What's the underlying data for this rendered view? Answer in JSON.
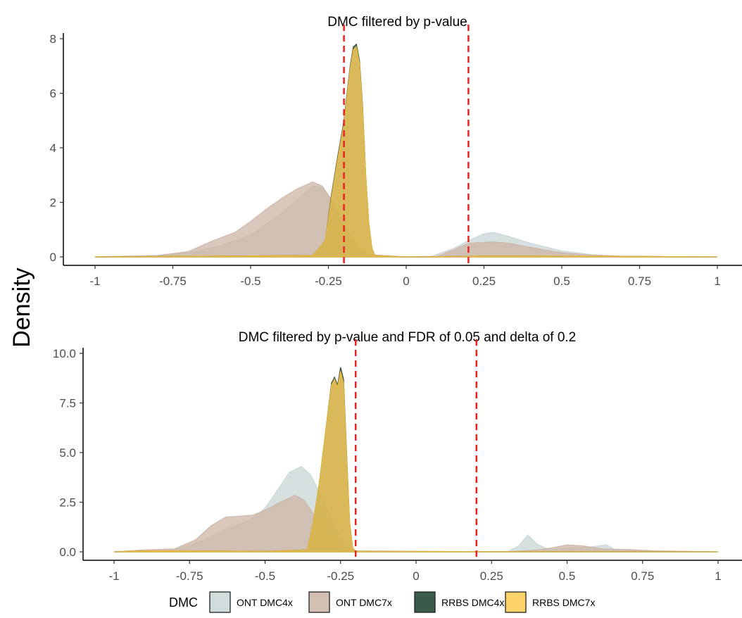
{
  "shared": {
    "ylabel": "Density",
    "legend_title": "DMC",
    "legend_position": "bottom",
    "threshold_lines": [
      -0.2,
      0.2
    ],
    "threshold_color": "#e8231f",
    "series_styles": [
      {
        "name": "ONT DMC4x",
        "fill": "#c9d6d6",
        "stroke": "#c9d6d6"
      },
      {
        "name": "ONT DMC7x",
        "fill": "#cdb5a6",
        "stroke": "#cdb5a6"
      },
      {
        "name": "RRBS DMC4x",
        "fill": "#3a5a4a",
        "stroke": "#2a4236"
      },
      {
        "name": "RRBS DMC7x",
        "fill": "#fdcb4f",
        "stroke": "#f2bd3b"
      }
    ]
  },
  "chart_data": [
    {
      "type": "area",
      "title": "DMC filtered by p-value",
      "xlabel": "",
      "ylabel": "Density",
      "xlim": [
        -1,
        1
      ],
      "ylim": [
        0,
        8
      ],
      "xticks": [
        -1,
        -0.75,
        -0.5,
        -0.25,
        0,
        0.25,
        0.5,
        0.75,
        1
      ],
      "xtick_labels": [
        "-1",
        "-0.75",
        "-0.5",
        "-0.25",
        "0",
        "0.25",
        "0.5",
        "0.75",
        "1"
      ],
      "yticks": [
        0,
        2,
        4,
        6,
        8
      ],
      "ytick_labels": [
        "0",
        "2",
        "4",
        "6",
        "8"
      ],
      "vlines": [
        -0.2,
        0.2
      ],
      "grid": false,
      "series": [
        {
          "name": "ONT DMC4x",
          "points": [
            [
              -1,
              0
            ],
            [
              -0.9,
              0.02
            ],
            [
              -0.8,
              0.05
            ],
            [
              -0.7,
              0.15
            ],
            [
              -0.6,
              0.4
            ],
            [
              -0.5,
              0.8
            ],
            [
              -0.45,
              1.2
            ],
            [
              -0.4,
              1.6
            ],
            [
              -0.35,
              2.1
            ],
            [
              -0.3,
              2.6
            ],
            [
              -0.27,
              2.55
            ],
            [
              -0.24,
              2.1
            ],
            [
              -0.21,
              1.4
            ],
            [
              -0.18,
              0.8
            ],
            [
              -0.15,
              0.35
            ],
            [
              -0.12,
              0.1
            ],
            [
              -0.09,
              0.02
            ],
            [
              0,
              0
            ],
            [
              0.08,
              0.02
            ],
            [
              0.15,
              0.3
            ],
            [
              0.2,
              0.6
            ],
            [
              0.25,
              0.85
            ],
            [
              0.28,
              0.9
            ],
            [
              0.33,
              0.75
            ],
            [
              0.4,
              0.5
            ],
            [
              0.5,
              0.22
            ],
            [
              0.6,
              0.08
            ],
            [
              0.7,
              0.02
            ],
            [
              1,
              0
            ]
          ]
        },
        {
          "name": "ONT DMC7x",
          "points": [
            [
              -1,
              0
            ],
            [
              -0.9,
              0.03
            ],
            [
              -0.8,
              0.05
            ],
            [
              -0.7,
              0.2
            ],
            [
              -0.62,
              0.6
            ],
            [
              -0.55,
              0.9
            ],
            [
              -0.5,
              1.3
            ],
            [
              -0.45,
              1.75
            ],
            [
              -0.4,
              2.15
            ],
            [
              -0.35,
              2.5
            ],
            [
              -0.3,
              2.75
            ],
            [
              -0.27,
              2.6
            ],
            [
              -0.24,
              2.1
            ],
            [
              -0.21,
              1.4
            ],
            [
              -0.18,
              0.7
            ],
            [
              -0.15,
              0.25
            ],
            [
              -0.12,
              0.08
            ],
            [
              0,
              0
            ],
            [
              0.1,
              0.02
            ],
            [
              0.15,
              0.25
            ],
            [
              0.2,
              0.5
            ],
            [
              0.28,
              0.55
            ],
            [
              0.33,
              0.5
            ],
            [
              0.4,
              0.35
            ],
            [
              0.5,
              0.15
            ],
            [
              0.6,
              0.06
            ],
            [
              0.7,
              0.02
            ],
            [
              1,
              0
            ]
          ]
        },
        {
          "name": "RRBS DMC4x",
          "points": [
            [
              -1,
              0
            ],
            [
              -0.7,
              0.02
            ],
            [
              -0.3,
              0.05
            ],
            [
              -0.26,
              0.6
            ],
            [
              -0.24,
              2.3
            ],
            [
              -0.22,
              3.7
            ],
            [
              -0.2,
              5.0
            ],
            [
              -0.19,
              6.0
            ],
            [
              -0.18,
              7.0
            ],
            [
              -0.17,
              7.7
            ],
            [
              -0.16,
              7.8
            ],
            [
              -0.15,
              7.2
            ],
            [
              -0.14,
              5.5
            ],
            [
              -0.13,
              3.0
            ],
            [
              -0.12,
              1.2
            ],
            [
              -0.11,
              0.3
            ],
            [
              -0.1,
              0.05
            ],
            [
              0,
              0
            ],
            [
              0.2,
              0.02
            ],
            [
              0.25,
              0.03
            ],
            [
              0.7,
              0.02
            ],
            [
              1,
              0
            ]
          ]
        },
        {
          "name": "RRBS DMC7x",
          "points": [
            [
              -1,
              0
            ],
            [
              -0.7,
              0.02
            ],
            [
              -0.3,
              0.05
            ],
            [
              -0.26,
              0.6
            ],
            [
              -0.24,
              2.2
            ],
            [
              -0.22,
              3.6
            ],
            [
              -0.2,
              4.9
            ],
            [
              -0.19,
              5.9
            ],
            [
              -0.18,
              6.9
            ],
            [
              -0.17,
              7.6
            ],
            [
              -0.16,
              7.7
            ],
            [
              -0.15,
              7.1
            ],
            [
              -0.14,
              5.4
            ],
            [
              -0.13,
              3.0
            ],
            [
              -0.12,
              1.2
            ],
            [
              -0.11,
              0.3
            ],
            [
              -0.1,
              0.05
            ],
            [
              0,
              0
            ],
            [
              0.2,
              0.02
            ],
            [
              0.25,
              0.03
            ],
            [
              0.7,
              0.02
            ],
            [
              1,
              0
            ]
          ]
        }
      ]
    },
    {
      "type": "area",
      "title": "DMC filtered by p-value and FDR of 0.05 and delta of 0.2",
      "xlabel": "",
      "ylabel": "Density",
      "xlim": [
        -1,
        1
      ],
      "ylim": [
        0,
        10
      ],
      "xticks": [
        -1,
        -0.75,
        -0.5,
        -0.25,
        0,
        0.25,
        0.5,
        0.75,
        1
      ],
      "xtick_labels": [
        "-1",
        "-0.75",
        "-0.5",
        "-0.25",
        "0",
        "0.25",
        "0.5",
        "0.75",
        "1"
      ],
      "yticks": [
        0,
        2.5,
        5,
        7.5,
        10
      ],
      "ytick_labels": [
        "0.0",
        "2.5",
        "5.0",
        "7.5",
        "10.0"
      ],
      "vlines": [
        -0.2,
        0.2
      ],
      "grid": false,
      "series": [
        {
          "name": "ONT DMC4x",
          "points": [
            [
              -1,
              0
            ],
            [
              -0.9,
              0.05
            ],
            [
              -0.8,
              0.1
            ],
            [
              -0.7,
              0.6
            ],
            [
              -0.62,
              1.2
            ],
            [
              -0.55,
              1.6
            ],
            [
              -0.5,
              2.2
            ],
            [
              -0.45,
              3.3
            ],
            [
              -0.42,
              4.0
            ],
            [
              -0.38,
              4.3
            ],
            [
              -0.35,
              3.9
            ],
            [
              -0.32,
              3.0
            ],
            [
              -0.29,
              2.0
            ],
            [
              -0.26,
              1.0
            ],
            [
              -0.23,
              0.3
            ],
            [
              -0.2,
              0.05
            ],
            [
              0.3,
              0
            ],
            [
              0.34,
              0.3
            ],
            [
              0.37,
              0.85
            ],
            [
              0.4,
              0.4
            ],
            [
              0.44,
              0.1
            ],
            [
              0.5,
              0.2
            ],
            [
              0.58,
              0.25
            ],
            [
              0.63,
              0.35
            ],
            [
              0.66,
              0.1
            ],
            [
              0.75,
              0.05
            ],
            [
              0.85,
              0.02
            ],
            [
              1,
              0
            ]
          ]
        },
        {
          "name": "ONT DMC7x",
          "points": [
            [
              -1,
              0
            ],
            [
              -0.9,
              0.1
            ],
            [
              -0.8,
              0.15
            ],
            [
              -0.73,
              0.6
            ],
            [
              -0.68,
              1.3
            ],
            [
              -0.63,
              1.75
            ],
            [
              -0.58,
              1.8
            ],
            [
              -0.54,
              1.85
            ],
            [
              -0.5,
              2.1
            ],
            [
              -0.45,
              2.5
            ],
            [
              -0.4,
              2.85
            ],
            [
              -0.37,
              2.6
            ],
            [
              -0.34,
              1.9
            ],
            [
              -0.31,
              1.1
            ],
            [
              -0.28,
              0.45
            ],
            [
              -0.25,
              0.15
            ],
            [
              -0.2,
              0.03
            ],
            [
              0.3,
              0
            ],
            [
              0.4,
              0.1
            ],
            [
              0.45,
              0.2
            ],
            [
              0.5,
              0.35
            ],
            [
              0.55,
              0.3
            ],
            [
              0.62,
              0.15
            ],
            [
              0.7,
              0.12
            ],
            [
              0.8,
              0.05
            ],
            [
              1,
              0
            ]
          ]
        },
        {
          "name": "RRBS DMC4x",
          "points": [
            [
              -1,
              0
            ],
            [
              -0.9,
              0.05
            ],
            [
              -0.75,
              0.05
            ],
            [
              -0.5,
              0.02
            ],
            [
              -0.36,
              0.1
            ],
            [
              -0.34,
              1.5
            ],
            [
              -0.32,
              3.5
            ],
            [
              -0.3,
              6.0
            ],
            [
              -0.28,
              8.5
            ],
            [
              -0.27,
              8.8
            ],
            [
              -0.26,
              8.4
            ],
            [
              -0.25,
              9.3
            ],
            [
              -0.24,
              8.7
            ],
            [
              -0.23,
              5.0
            ],
            [
              -0.22,
              1.5
            ],
            [
              -0.21,
              0.2
            ],
            [
              -0.2,
              0.02
            ],
            [
              1,
              0
            ]
          ]
        },
        {
          "name": "RRBS DMC7x",
          "points": [
            [
              -1,
              0
            ],
            [
              -0.9,
              0.05
            ],
            [
              -0.75,
              0.05
            ],
            [
              -0.5,
              0.02
            ],
            [
              -0.36,
              0.1
            ],
            [
              -0.34,
              1.5
            ],
            [
              -0.32,
              3.5
            ],
            [
              -0.3,
              6.0
            ],
            [
              -0.28,
              8.4
            ],
            [
              -0.27,
              8.7
            ],
            [
              -0.26,
              8.3
            ],
            [
              -0.25,
              9.1
            ],
            [
              -0.24,
              8.5
            ],
            [
              -0.23,
              4.9
            ],
            [
              -0.22,
              1.5
            ],
            [
              -0.21,
              0.2
            ],
            [
              -0.2,
              0.02
            ],
            [
              1,
              0
            ]
          ]
        }
      ]
    }
  ]
}
